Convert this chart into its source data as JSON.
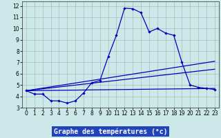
{
  "xlabel": "Graphe des températures (°c)",
  "bg_color": "#cce8e8",
  "line_color": "#0000bb",
  "grid_color": "#aabbbb",
  "xlim": [
    -0.5,
    23.5
  ],
  "ylim": [
    3,
    12.4
  ],
  "yticks": [
    3,
    4,
    5,
    6,
    7,
    8,
    9,
    10,
    11,
    12
  ],
  "xticks": [
    0,
    1,
    2,
    3,
    4,
    5,
    6,
    7,
    8,
    9,
    10,
    11,
    12,
    13,
    14,
    15,
    16,
    17,
    18,
    19,
    20,
    21,
    22,
    23
  ],
  "curve1_x": [
    0,
    1,
    2,
    3,
    4,
    5,
    6,
    7,
    8,
    9,
    10,
    11,
    12,
    13,
    14,
    15,
    16,
    17,
    18,
    19,
    20,
    21,
    22,
    23
  ],
  "curve1_y": [
    4.5,
    4.2,
    4.2,
    3.6,
    3.6,
    3.4,
    3.6,
    4.3,
    5.2,
    5.4,
    7.5,
    9.4,
    11.8,
    11.75,
    11.4,
    9.7,
    10.0,
    9.6,
    9.4,
    7.0,
    5.0,
    4.8,
    4.7,
    4.6
  ],
  "line1_x": [
    0,
    23
  ],
  "line1_y": [
    4.5,
    4.7
  ],
  "line2_x": [
    0,
    23
  ],
  "line2_y": [
    4.5,
    6.4
  ],
  "line3_x": [
    0,
    23
  ],
  "line3_y": [
    4.5,
    7.1
  ],
  "xlabel_bg": "#2244bb",
  "xlabel_color": "#ffffff",
  "xlabel_fontsize": 7
}
